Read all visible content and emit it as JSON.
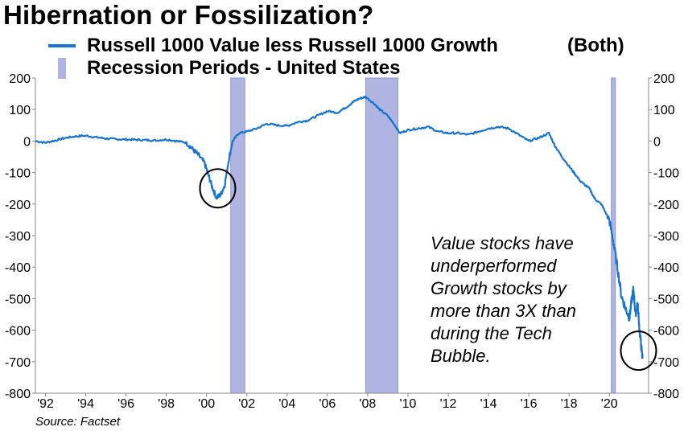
{
  "chart_data": {
    "type": "line",
    "title": "Hibernation or Fossilization?",
    "series": [
      {
        "name": "Russell 1000 Value less Russell 1000 Growth",
        "color": "#1874CD",
        "x": [
          1991.5,
          1992.0,
          1992.5,
          1993.0,
          1993.5,
          1994.0,
          1994.5,
          1995.0,
          1995.5,
          1996.0,
          1996.5,
          1997.0,
          1997.5,
          1998.0,
          1998.5,
          1999.0,
          1999.3,
          1999.6,
          1999.9,
          2000.1,
          2000.3,
          2000.5,
          2000.7,
          2000.9,
          2001.1,
          2001.3,
          2001.6,
          2002.0,
          2002.5,
          2003.0,
          2003.5,
          2004.0,
          2004.5,
          2005.0,
          2005.5,
          2006.0,
          2006.5,
          2007.0,
          2007.3,
          2007.6,
          2007.9,
          2008.3,
          2008.6,
          2009.0,
          2009.3,
          2009.6,
          2010.0,
          2010.5,
          2011.0,
          2011.5,
          2012.0,
          2012.5,
          2013.0,
          2013.5,
          2014.0,
          2014.5,
          2015.0,
          2015.5,
          2016.0,
          2016.5,
          2017.0,
          2017.3,
          2017.6,
          2018.0,
          2018.3,
          2018.6,
          2019.0,
          2019.3,
          2019.6,
          2020.0,
          2020.2,
          2020.4,
          2020.6,
          2020.8,
          2021.0,
          2021.1,
          2021.2,
          2021.3,
          2021.4,
          2021.5,
          2021.6,
          2021.65
        ],
        "values": [
          0,
          -5,
          2,
          10,
          15,
          17,
          12,
          8,
          6,
          5,
          4,
          3,
          2,
          5,
          0,
          -5,
          -25,
          -45,
          -70,
          -110,
          -150,
          -180,
          -170,
          -140,
          -60,
          0,
          25,
          30,
          40,
          55,
          50,
          48,
          60,
          65,
          80,
          95,
          90,
          110,
          125,
          135,
          140,
          120,
          100,
          80,
          55,
          25,
          35,
          40,
          45,
          30,
          25,
          25,
          20,
          30,
          40,
          45,
          40,
          20,
          0,
          10,
          25,
          -15,
          -45,
          -80,
          -105,
          -130,
          -150,
          -185,
          -200,
          -250,
          -320,
          -400,
          -490,
          -530,
          -560,
          -510,
          -470,
          -550,
          -510,
          -600,
          -660,
          -690
        ]
      }
    ],
    "recessions": [
      {
        "start": 2001.2,
        "end": 2001.9
      },
      {
        "start": 2007.9,
        "end": 2009.5
      },
      {
        "start": 2020.1,
        "end": 2020.3
      }
    ],
    "highlight_circles": [
      {
        "x": 2000.55,
        "y": -150
      },
      {
        "x": 2021.45,
        "y": -665
      }
    ],
    "ylim": [
      -800,
      200
    ],
    "yticks": [
      200,
      100,
      0,
      -100,
      -200,
      -300,
      -400,
      -500,
      -600,
      -700,
      -800
    ],
    "xlim": [
      1991.5,
      2021.95
    ],
    "xtick_labels": [
      "'92",
      "'94",
      "'96",
      "'98",
      "'00",
      "'02",
      "'04",
      "'06",
      "'08",
      "'10",
      "'12",
      "'14",
      "'16",
      "'18",
      "'20"
    ],
    "xtick_values": [
      1992,
      1994,
      1996,
      1998,
      2000,
      2002,
      2004,
      2006,
      2008,
      2010,
      2012,
      2014,
      2016,
      2018,
      2020
    ],
    "grid": false,
    "legend_position": "top-left",
    "legend": {
      "line_label": "Russell 1000 Value less Russell 1000 Growth",
      "line_extra": "(Both)",
      "bar_label": "Recession Periods - United States"
    },
    "annotation": "Value stocks have\nunderperformed\nGrowth stocks by\nmore than 3X than\nduring the Tech\nBubble.",
    "source": "Source: Factset",
    "colors": {
      "line": "#1874CD",
      "recession": "#AFB5E0",
      "recession_edge": "#8F96CF",
      "circle": "#000000"
    }
  }
}
